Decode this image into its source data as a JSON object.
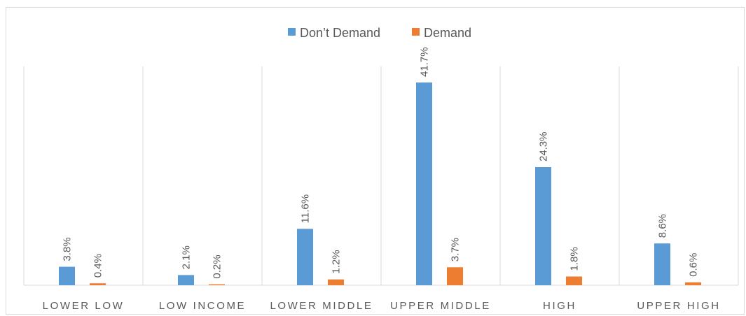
{
  "chart_data": {
    "type": "bar",
    "categories": [
      "LOWER LOW",
      "LOW INCOME",
      "LOWER MIDDLE",
      "UPPER MIDDLE",
      "HIGH",
      "UPPER HIGH"
    ],
    "series": [
      {
        "name": "Don’t Demand",
        "color": "#5b9bd5",
        "values": [
          3.8,
          2.1,
          11.6,
          41.7,
          24.3,
          8.6
        ],
        "labels": [
          "3.8%",
          "2.1%",
          "11.6%",
          "41.7%",
          "24.3%",
          "8.6%"
        ]
      },
      {
        "name": "Demand",
        "color": "#ed7d31",
        "values": [
          0.4,
          0.2,
          1.2,
          3.7,
          1.8,
          0.6
        ],
        "labels": [
          "0.4%",
          "0.2%",
          "1.2%",
          "3.7%",
          "1.8%",
          "0.6%"
        ]
      }
    ],
    "title": "",
    "xlabel": "",
    "ylabel": "",
    "ylim": [
      0,
      41.7
    ],
    "grid": "vertical category separators",
    "legend": "top-center",
    "y_axis_visible": false
  }
}
